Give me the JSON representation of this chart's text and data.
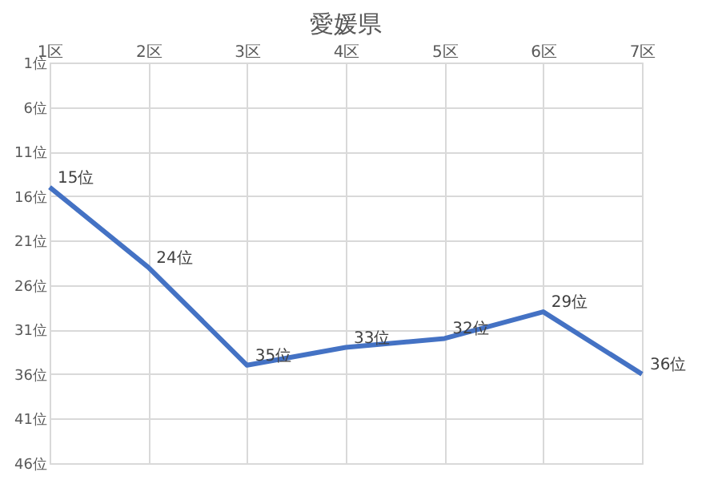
{
  "chart_data": {
    "type": "line",
    "title": "愛媛県",
    "categories": [
      "1区",
      "2区",
      "3区",
      "4区",
      "5区",
      "6区",
      "7区"
    ],
    "series": [
      {
        "color": "#4472c4",
        "values": [
          15,
          24,
          35,
          33,
          32,
          29,
          36
        ],
        "value_labels": [
          "15位",
          "24位",
          "35位",
          "33位",
          "32位",
          "29位",
          "36位"
        ]
      }
    ],
    "ylim": [
      46,
      1
    ],
    "yticks": [
      {
        "value": 1,
        "label": "1位"
      },
      {
        "value": 6,
        "label": "6位"
      },
      {
        "value": 11,
        "label": "11位"
      },
      {
        "value": 16,
        "label": "16位"
      },
      {
        "value": 21,
        "label": "21位"
      },
      {
        "value": 26,
        "label": "26位"
      },
      {
        "value": 31,
        "label": "31位"
      },
      {
        "value": 36,
        "label": "36位"
      },
      {
        "value": 41,
        "label": "41位"
      },
      {
        "value": 46,
        "label": "46位"
      }
    ],
    "grid": true,
    "marker": "none",
    "line_style": "solid"
  }
}
